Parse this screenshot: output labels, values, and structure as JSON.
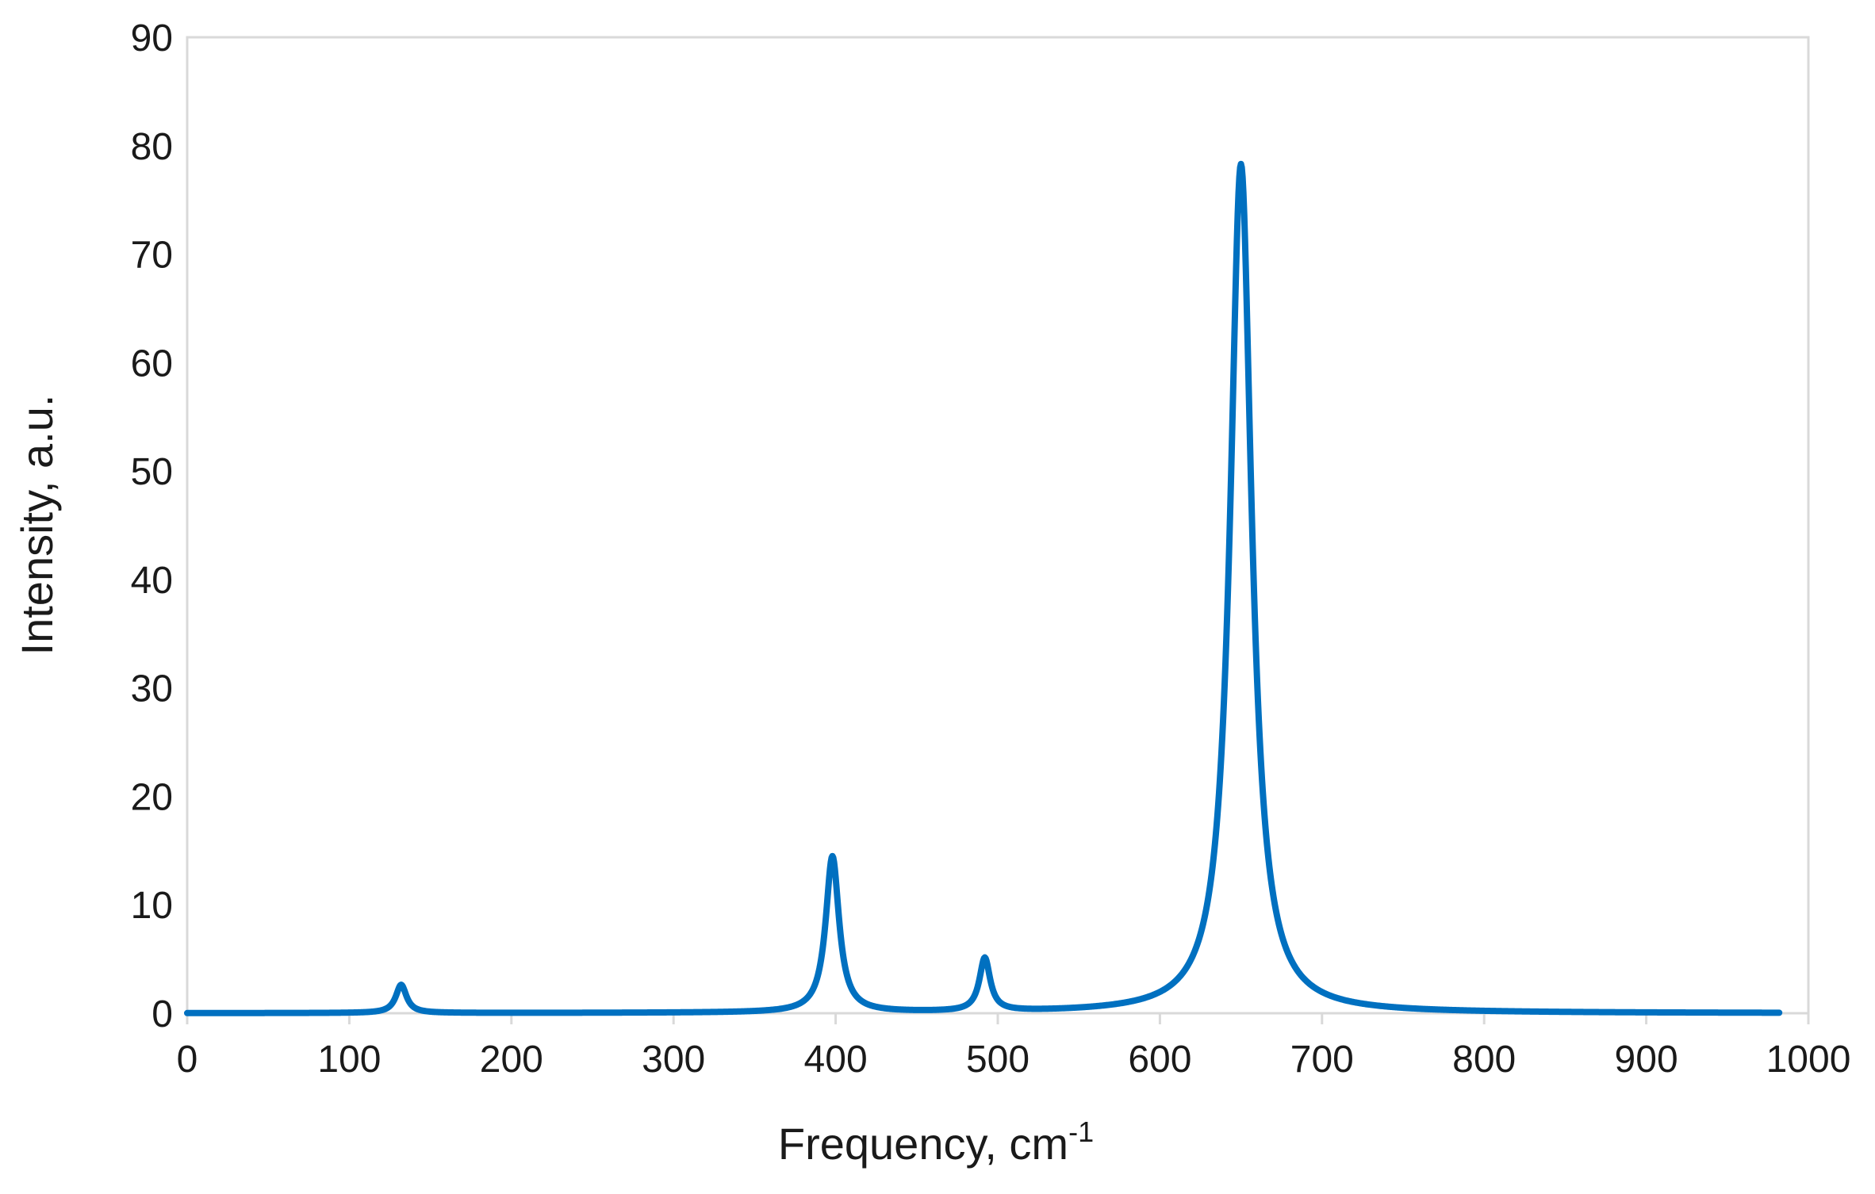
{
  "chart_data": {
    "type": "line",
    "title": "",
    "xlabel": "Frequency, cm",
    "xlabel_superscript": "-1",
    "ylabel": "Intensity, a.u.",
    "xlim": [
      0,
      1000
    ],
    "ylim": [
      0,
      90
    ],
    "x_ticks": [
      0,
      100,
      200,
      300,
      400,
      500,
      600,
      700,
      800,
      900,
      1000
    ],
    "y_ticks": [
      0,
      10,
      20,
      30,
      40,
      50,
      60,
      70,
      80,
      90
    ],
    "grid": false,
    "legend": "none",
    "line_color": "#0070C0",
    "series": [
      {
        "x_range": [
          0,
          982
        ],
        "peaks": [
          {
            "x": 132,
            "y": 2.6
          },
          {
            "x": 398,
            "y": 14.4
          },
          {
            "x": 492,
            "y": 4.9
          },
          {
            "x": 650,
            "y": 78.3
          }
        ]
      }
    ]
  }
}
